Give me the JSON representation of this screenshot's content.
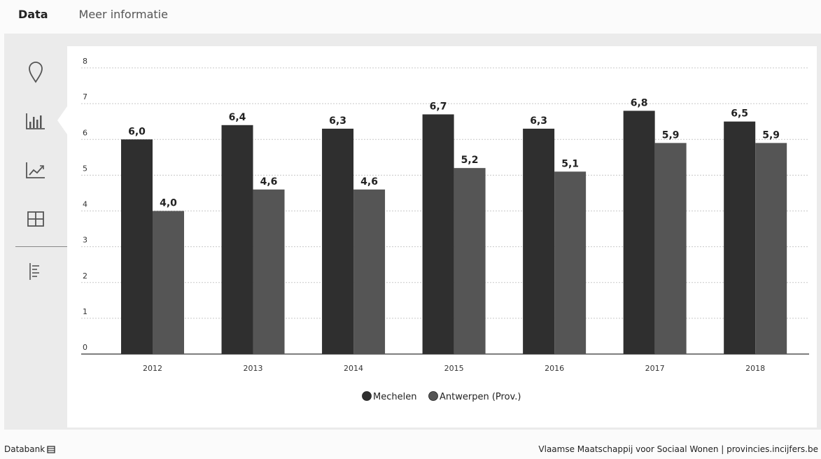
{
  "tabs": {
    "data": "Data",
    "info": "Meer informatie"
  },
  "sidebar": {
    "icons": [
      "map-pin-icon",
      "bar-chart-icon",
      "line-chart-icon",
      "table-icon",
      "list-icon"
    ],
    "active": "bar-chart-icon"
  },
  "chart_data": {
    "type": "bar",
    "categories": [
      "2012",
      "2013",
      "2014",
      "2015",
      "2016",
      "2017",
      "2018"
    ],
    "series": [
      {
        "name": "Mechelen",
        "values": [
          6.0,
          6.4,
          6.3,
          6.7,
          6.3,
          6.8,
          6.5
        ],
        "labels": [
          "6,0",
          "6,4",
          "6,3",
          "6,7",
          "6,3",
          "6,8",
          "6,5"
        ],
        "color": "#2f2f2f"
      },
      {
        "name": "Antwerpen (Prov.)",
        "values": [
          4.0,
          4.6,
          4.6,
          5.2,
          5.1,
          5.9,
          5.9
        ],
        "labels": [
          "4,0",
          "4,6",
          "4,6",
          "5,2",
          "5,1",
          "5,9",
          "5,9"
        ],
        "color": "#555555"
      }
    ],
    "ylim": [
      0,
      8
    ],
    "yticks": [
      "0",
      "1",
      "2",
      "3",
      "4",
      "5",
      "6",
      "7",
      "8"
    ],
    "grid": true,
    "legend_position": "bottom-center"
  },
  "footer": {
    "left": "Databank",
    "right": "Vlaamse Maatschappij voor Sociaal Wonen | provincies.incijfers.be"
  }
}
